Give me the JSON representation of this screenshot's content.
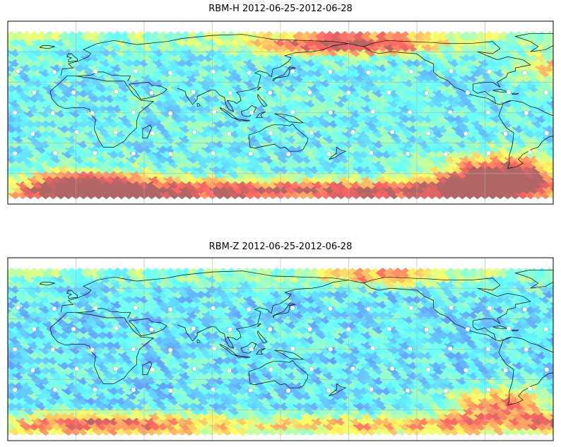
{
  "panels": [
    {
      "title": "RBM-H 2012-06-25-2012-06-28",
      "field": {
        "base": 0.35,
        "hot_zones": [
          {
            "lon": 10,
            "lat": -75,
            "rlon": 45,
            "rlat": 18,
            "amp": 0.75
          },
          {
            "lon": 100,
            "lat": -75,
            "rlon": 60,
            "rlat": 10,
            "amp": 0.45
          },
          {
            "lon": 200,
            "lat": -75,
            "rlon": 60,
            "rlat": 10,
            "amp": 0.45
          },
          {
            "lon": 180,
            "lat": 68,
            "rlon": 55,
            "rlat": 10,
            "amp": 0.6
          },
          {
            "lon": 280,
            "lat": -65,
            "rlon": 40,
            "rlat": 22,
            "amp": 0.85
          },
          {
            "lon": 320,
            "lat": 45,
            "rlon": 25,
            "rlat": 15,
            "amp": 0.35
          }
        ]
      }
    },
    {
      "title": "RBM-Z 2012-06-25-2012-06-28",
      "field": {
        "base": 0.32,
        "hot_zones": [
          {
            "lon": 20,
            "lat": -72,
            "rlon": 70,
            "rlat": 10,
            "amp": 0.45
          },
          {
            "lon": 200,
            "lat": -72,
            "rlon": 90,
            "rlat": 8,
            "amp": 0.3
          },
          {
            "lon": 200,
            "lat": 72,
            "rlon": 40,
            "rlat": 8,
            "amp": 0.35
          },
          {
            "lon": 280,
            "lat": -55,
            "rlon": 35,
            "rlat": 18,
            "amp": 0.5
          },
          {
            "lon": 330,
            "lat": -72,
            "rlon": 30,
            "rlat": 10,
            "amp": 0.45
          }
        ]
      }
    }
  ],
  "map": {
    "lon_range": [
      -45,
      315
    ],
    "lat_range": [
      -90,
      90
    ],
    "data_lat_range": [
      -80,
      78
    ],
    "gridlines": true,
    "colormap": "jet",
    "alpha": 0.6,
    "grid_step_deg": 5
  },
  "colors": {
    "frame": "#000000",
    "gridline": "#b0b0b0",
    "coast": "#000000",
    "markers": "#ffffff"
  }
}
